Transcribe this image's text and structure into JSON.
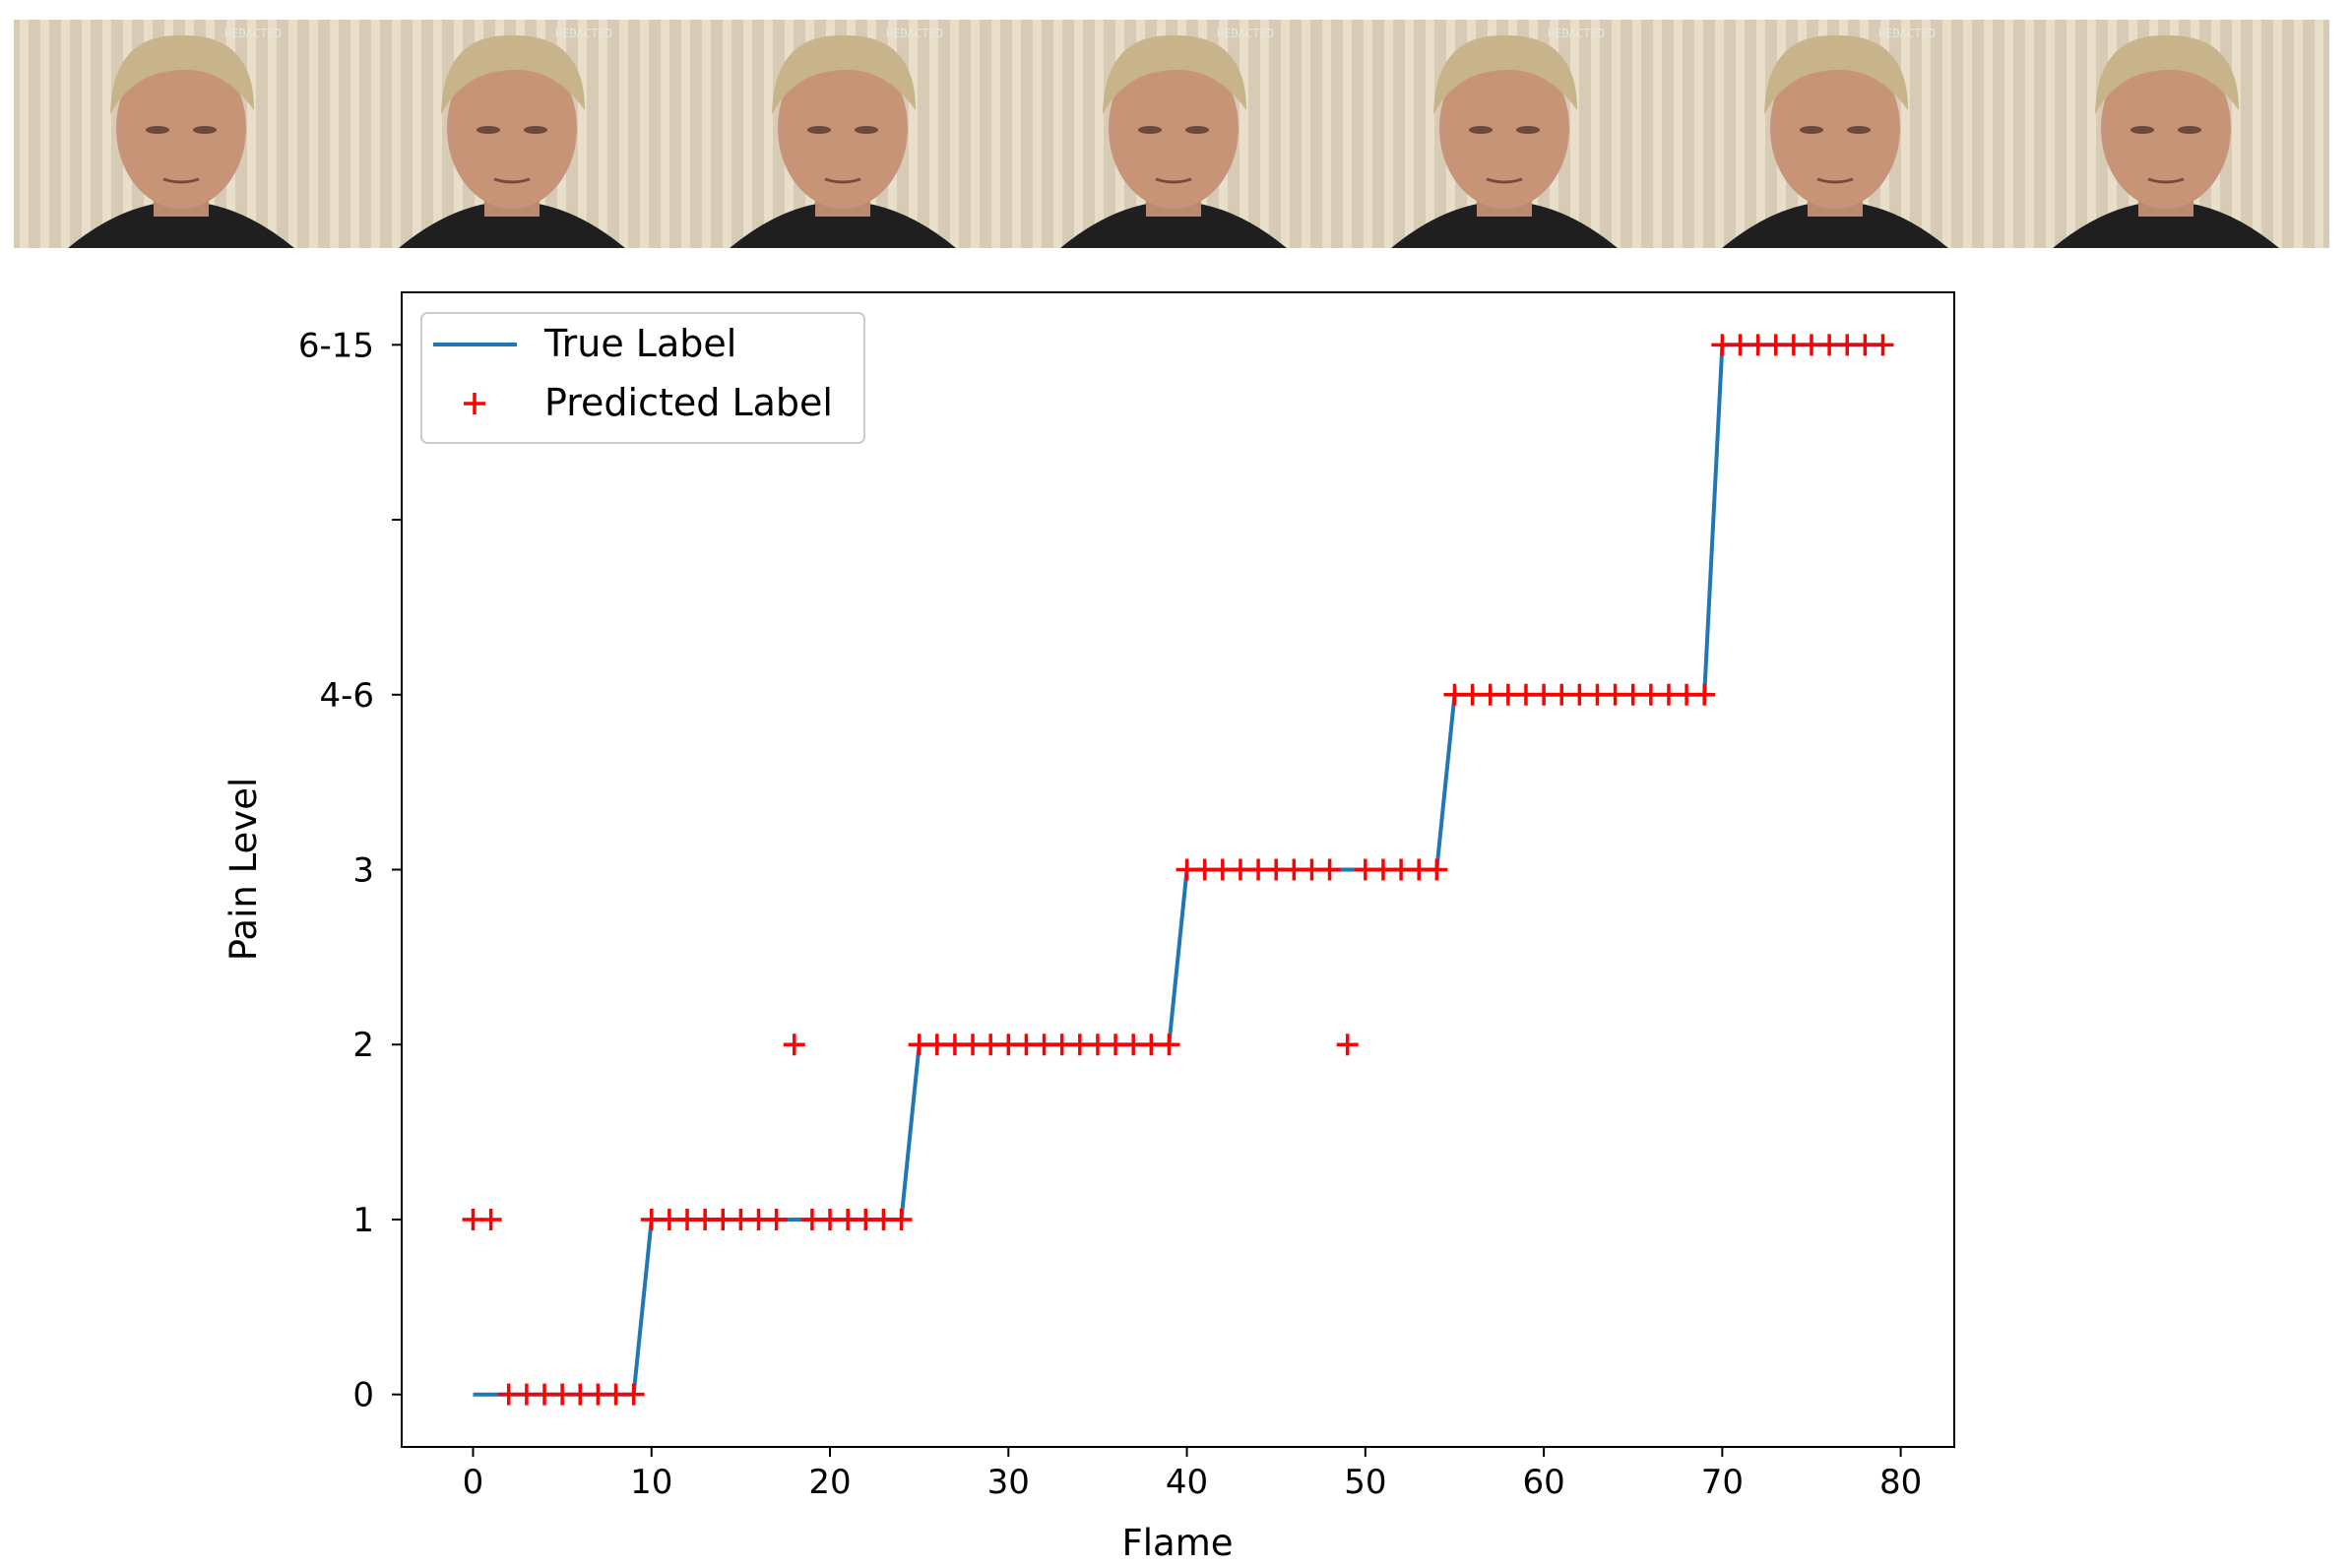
{
  "filmstrip": {
    "frame_count": 7,
    "background_color": "#d8cbb6",
    "stripe_color": "#efe6d3",
    "stamp_text": "REDACTED"
  },
  "chart_data": {
    "type": "line",
    "xlabel": "Flame",
    "ylabel": "Pain Level",
    "xlim": [
      -4,
      83
    ],
    "ylim": [
      -0.3,
      6.3
    ],
    "x_ticks": [
      0,
      10,
      20,
      30,
      40,
      50,
      60,
      70,
      80
    ],
    "y_ticks": [
      {
        "value": 0,
        "label": "0"
      },
      {
        "value": 1,
        "label": "1"
      },
      {
        "value": 2,
        "label": "2"
      },
      {
        "value": 3,
        "label": "3"
      },
      {
        "value": 4,
        "label": "4-6"
      },
      {
        "value": 5,
        "label": ""
      },
      {
        "value": 6,
        "label": "6-15"
      }
    ],
    "legend": {
      "placement": "upper-left"
    },
    "series": [
      {
        "name": "True Label",
        "kind": "line",
        "color": "#1f77b4",
        "x": [
          0,
          9,
          10,
          24,
          25,
          39,
          40,
          54,
          55,
          69,
          70,
          79
        ],
        "y": [
          0,
          0,
          1,
          1,
          2,
          2,
          3,
          3,
          4,
          4,
          6,
          6
        ]
      },
      {
        "name": "Predicted Label",
        "kind": "scatter",
        "marker": "+",
        "color": "#ff0000",
        "x": [
          0,
          1,
          2,
          3,
          4,
          5,
          6,
          7,
          8,
          9,
          10,
          11,
          12,
          13,
          14,
          15,
          16,
          17,
          18,
          19,
          20,
          21,
          22,
          23,
          24,
          25,
          26,
          27,
          28,
          29,
          30,
          31,
          32,
          33,
          34,
          35,
          36,
          37,
          38,
          39,
          40,
          41,
          42,
          43,
          44,
          45,
          46,
          47,
          48,
          49,
          50,
          51,
          52,
          53,
          54,
          55,
          56,
          57,
          58,
          59,
          60,
          61,
          62,
          63,
          64,
          65,
          66,
          67,
          68,
          69,
          70,
          71,
          72,
          73,
          74,
          75,
          76,
          77,
          78,
          79
        ],
        "y": [
          1,
          1,
          0,
          0,
          0,
          0,
          0,
          0,
          0,
          0,
          1,
          1,
          1,
          1,
          1,
          1,
          1,
          1,
          2,
          1,
          1,
          1,
          1,
          1,
          1,
          2,
          2,
          2,
          2,
          2,
          2,
          2,
          2,
          2,
          2,
          2,
          2,
          2,
          2,
          2,
          3,
          3,
          3,
          3,
          3,
          3,
          3,
          3,
          3,
          2,
          3,
          3,
          3,
          3,
          3,
          4,
          4,
          4,
          4,
          4,
          4,
          4,
          4,
          4,
          4,
          4,
          4,
          4,
          4,
          4,
          6,
          6,
          6,
          6,
          6,
          6,
          6,
          6,
          6,
          6
        ]
      }
    ]
  }
}
